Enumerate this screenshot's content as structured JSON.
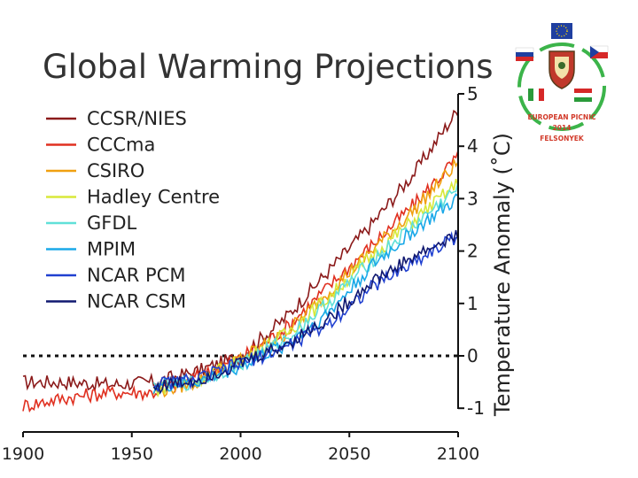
{
  "chart_data": {
    "type": "line",
    "title": "Global Warming Projections",
    "xlabel": "",
    "ylabel": "Temperature Anomaly (˚C)",
    "xlim": [
      1900,
      2100
    ],
    "ylim": [
      -1.5,
      5
    ],
    "x_ticks": [
      "1900",
      "1950",
      "2000",
      "2050",
      "2100"
    ],
    "y_ticks": [
      "-1",
      "0",
      "1",
      "2",
      "3",
      "4",
      "5"
    ],
    "reference_line": {
      "y": 0,
      "style": "dotted"
    },
    "legend_position": "top-left",
    "series": [
      {
        "name": "CCSR/NIES",
        "color": "#8b1a1a",
        "x": [
          1900,
          1920,
          1940,
          1960,
          1980,
          2000,
          2020,
          2040,
          2060,
          2080,
          2100
        ],
        "y": [
          -0.5,
          -0.5,
          -0.55,
          -0.5,
          -0.3,
          0.0,
          0.7,
          1.6,
          2.5,
          3.5,
          4.7
        ]
      },
      {
        "name": "CCCma",
        "color": "#e03020",
        "x": [
          1900,
          1920,
          1940,
          1960,
          1980,
          2000,
          2020,
          2040,
          2060,
          2080,
          2100
        ],
        "y": [
          -0.95,
          -0.8,
          -0.7,
          -0.7,
          -0.4,
          -0.05,
          0.5,
          1.3,
          2.1,
          2.9,
          3.8
        ]
      },
      {
        "name": "CSIRO",
        "color": "#f0a010",
        "x": [
          1960,
          1980,
          2000,
          2020,
          2040,
          2060,
          2080,
          2100
        ],
        "y": [
          -0.7,
          -0.5,
          -0.05,
          0.4,
          1.2,
          2.0,
          2.8,
          3.7
        ]
      },
      {
        "name": "Hadley Centre",
        "color": "#d8e83a",
        "x": [
          1960,
          1980,
          2000,
          2020,
          2040,
          2060,
          2080,
          2100
        ],
        "y": [
          -0.65,
          -0.45,
          -0.1,
          0.4,
          1.1,
          1.9,
          2.6,
          3.3
        ]
      },
      {
        "name": "GFDL",
        "color": "#60e0d8",
        "x": [
          1960,
          1980,
          2000,
          2020,
          2040,
          2060,
          2080,
          2100
        ],
        "y": [
          -0.6,
          -0.5,
          -0.15,
          0.3,
          1.0,
          1.8,
          2.5,
          3.2
        ]
      },
      {
        "name": "MPIM",
        "color": "#1aa8e8",
        "x": [
          1960,
          1980,
          2000,
          2020,
          2040,
          2060,
          2080,
          2100
        ],
        "y": [
          -0.6,
          -0.5,
          -0.2,
          0.2,
          0.8,
          1.7,
          2.4,
          3.0
        ]
      },
      {
        "name": "NCAR PCM",
        "color": "#2040d0",
        "x": [
          1960,
          1980,
          2000,
          2020,
          2040,
          2060,
          2080,
          2100
        ],
        "y": [
          -0.55,
          -0.45,
          -0.15,
          0.15,
          0.6,
          1.3,
          1.8,
          2.3
        ]
      },
      {
        "name": "NCAR CSM",
        "color": "#101870",
        "x": [
          1960,
          1980,
          2000,
          2020,
          2040,
          2060,
          2080,
          2100
        ],
        "y": [
          -0.6,
          -0.45,
          -0.15,
          0.2,
          0.7,
          1.4,
          1.9,
          2.3
        ]
      }
    ]
  },
  "logo": {
    "line1": "EUROPEAN PICNIC",
    "line2": "2014",
    "line3": "FELSONYEK",
    "colors": {
      "ring": "#3cb44a",
      "eu": "#1f3fa0",
      "star": "#ffd700"
    }
  }
}
